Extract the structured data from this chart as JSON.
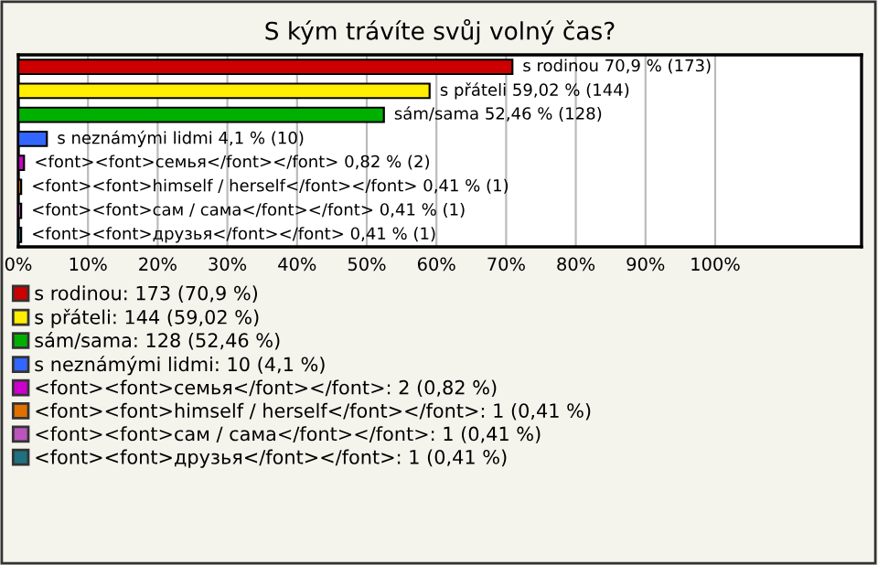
{
  "chart_data": {
    "type": "bar",
    "orientation": "horizontal",
    "title": "S kým trávíte svůj volný čas?",
    "categories": [
      null,
      null,
      null,
      null,
      null,
      null,
      null,
      null
    ],
    "series": [
      {
        "name": "s rodinou: 173 (70,9 %)",
        "color": "#cc0000",
        "values": [
          70.9,
          null,
          null,
          null,
          null,
          null,
          null,
          null
        ],
        "value_labels": [
          "s rodinou 70,9 % (173)",
          null,
          null,
          null,
          null,
          null,
          null,
          null
        ]
      },
      {
        "name": "s přáteli: 144 (59,02 %)",
        "color": "#ffee00",
        "values": [
          null,
          59.02,
          null,
          null,
          null,
          null,
          null,
          null
        ],
        "value_labels": [
          null,
          "s přáteli 59,02 % (144)",
          null,
          null,
          null,
          null,
          null,
          null
        ]
      },
      {
        "name": "sám/sama: 128 (52,46 %)",
        "color": "#00b000",
        "values": [
          null,
          null,
          52.46,
          null,
          null,
          null,
          null,
          null
        ],
        "value_labels": [
          null,
          null,
          "sám/sama 52,46 % (128)",
          null,
          null,
          null,
          null,
          null
        ]
      },
      {
        "name": "s neznámými lidmi: 10 (4,1 %)",
        "color": "#3366ff",
        "values": [
          null,
          null,
          null,
          4.1,
          null,
          null,
          null,
          null
        ],
        "value_labels": [
          null,
          null,
          null,
          "s neznámými lidmi 4,1 % (10)",
          null,
          null,
          null,
          null
        ]
      },
      {
        "name": "<font><font>семья</font></font>: 2 (0,82 %)",
        "color": "#cc00cc",
        "values": [
          null,
          null,
          null,
          null,
          0.82,
          null,
          null,
          null
        ],
        "value_labels": [
          null,
          null,
          null,
          null,
          "<font><font>семья</font></font> 0,82 % (2)",
          null,
          null,
          null
        ]
      },
      {
        "name": "<font><font>himself / herself</font></font>: 1 (0,41 %)",
        "color": "#e07000",
        "values": [
          null,
          null,
          null,
          null,
          null,
          0.41,
          null,
          null
        ],
        "value_labels": [
          null,
          null,
          null,
          null,
          null,
          "<font><font>himself / herself</font></font> 0,41 % (1)",
          null,
          null
        ]
      },
      {
        "name": "<font><font>сам / сама</font></font>: 1 (0,41 %)",
        "color": "#bb55bb",
        "values": [
          null,
          null,
          null,
          null,
          null,
          null,
          0.41,
          null
        ],
        "value_labels": [
          null,
          null,
          null,
          null,
          null,
          null,
          "<font><font>сам / сама</font></font> 0,41 % (1)",
          null
        ]
      },
      {
        "name": "<font><font>друзья</font></font>: 1 (0,41 %)",
        "color": "#207080",
        "values": [
          null,
          null,
          null,
          null,
          null,
          null,
          null,
          0.41
        ],
        "value_labels": [
          null,
          null,
          null,
          null,
          null,
          null,
          null,
          "<font><font>друзья</font></font> 0,41 % (1)"
        ]
      }
    ],
    "xlim": [
      0,
      121
    ],
    "xticks": [
      {
        "value": 0,
        "label": "0%"
      },
      {
        "value": 10,
        "label": "10%"
      },
      {
        "value": 20,
        "label": "20%"
      },
      {
        "value": 30,
        "label": "30%"
      },
      {
        "value": 40,
        "label": "40%"
      },
      {
        "value": 50,
        "label": "50%"
      },
      {
        "value": 60,
        "label": "60%"
      },
      {
        "value": 70,
        "label": "70%"
      },
      {
        "value": 80,
        "label": "80%"
      },
      {
        "value": 90,
        "label": "90%"
      },
      {
        "value": 100,
        "label": "100%"
      }
    ],
    "grid": "x",
    "legend": "bottom"
  }
}
